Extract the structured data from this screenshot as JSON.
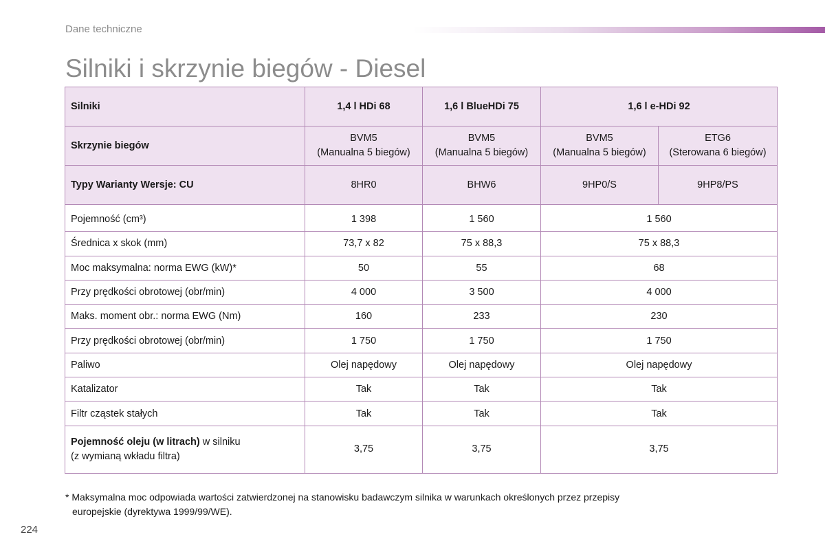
{
  "header": {
    "section": "Dane techniczne",
    "title": "Silniki i skrzynie biegów - Diesel"
  },
  "table": {
    "engines_label": "Silniki",
    "engines": [
      "1,4 l HDi 68",
      "1,6 l BlueHDi 75",
      "1,6 l e-HDi 92"
    ],
    "gearbox_label": "Skrzynie biegów",
    "gearboxes": [
      {
        "code": "BVM5",
        "desc": "(Manualna 5 biegów)"
      },
      {
        "code": "BVM5",
        "desc": "(Manualna 5 biegów)"
      },
      {
        "code": "BVM5",
        "desc": "(Manualna 5 biegów)"
      },
      {
        "code": "ETG6",
        "desc": "(Sterowana 6 biegów)"
      }
    ],
    "types_label": "Typy Warianty Wersje: CU",
    "types": [
      "8HR0",
      "BHW6",
      "9HP0/S",
      "9HP8/PS"
    ],
    "rows": [
      {
        "label": "Pojemność (cm³)",
        "values": [
          "1 398",
          "1 560",
          "1 560"
        ]
      },
      {
        "label": "Średnica x skok (mm)",
        "values": [
          "73,7 x 82",
          "75 x 88,3",
          "75 x 88,3"
        ]
      },
      {
        "label": "Moc maksymalna: norma EWG (kW)*",
        "values": [
          "50",
          "55",
          "68"
        ]
      },
      {
        "label": "Przy prędkości obrotowej (obr/min)",
        "values": [
          "4 000",
          "3 500",
          "4 000"
        ]
      },
      {
        "label": "Maks. moment obr.: norma EWG (Nm)",
        "values": [
          "160",
          "233",
          "230"
        ]
      },
      {
        "label": "Przy prędkości obrotowej (obr/min)",
        "values": [
          "1 750",
          "1 750",
          "1 750"
        ]
      },
      {
        "label": "Paliwo",
        "values": [
          "Olej napędowy",
          "Olej napędowy",
          "Olej napędowy"
        ]
      },
      {
        "label": "Katalizator",
        "values": [
          "Tak",
          "Tak",
          "Tak"
        ]
      },
      {
        "label": "Filtr cząstek stałych",
        "values": [
          "Tak",
          "Tak",
          "Tak"
        ]
      }
    ],
    "oil": {
      "label_bold": "Pojemność oleju (w litrach)",
      "label_rest": " w silniku",
      "label_line2": "(z wymianą wkładu filtra)",
      "values": [
        "3,75",
        "3,75",
        "3,75"
      ]
    }
  },
  "footnote": {
    "line1": "* Maksymalna moc odpowiada wartości zatwierdzonej na stanowisku badawczym silnika w warunkach określonych przez przepisy",
    "line2": "europejskie (dyrektywa 1999/99/WE)."
  },
  "page_number": "224",
  "colors": {
    "accent": "#a45aa6",
    "header_fill": "#efe1f0",
    "border": "#b389b6",
    "title": "#8c8c8c"
  }
}
